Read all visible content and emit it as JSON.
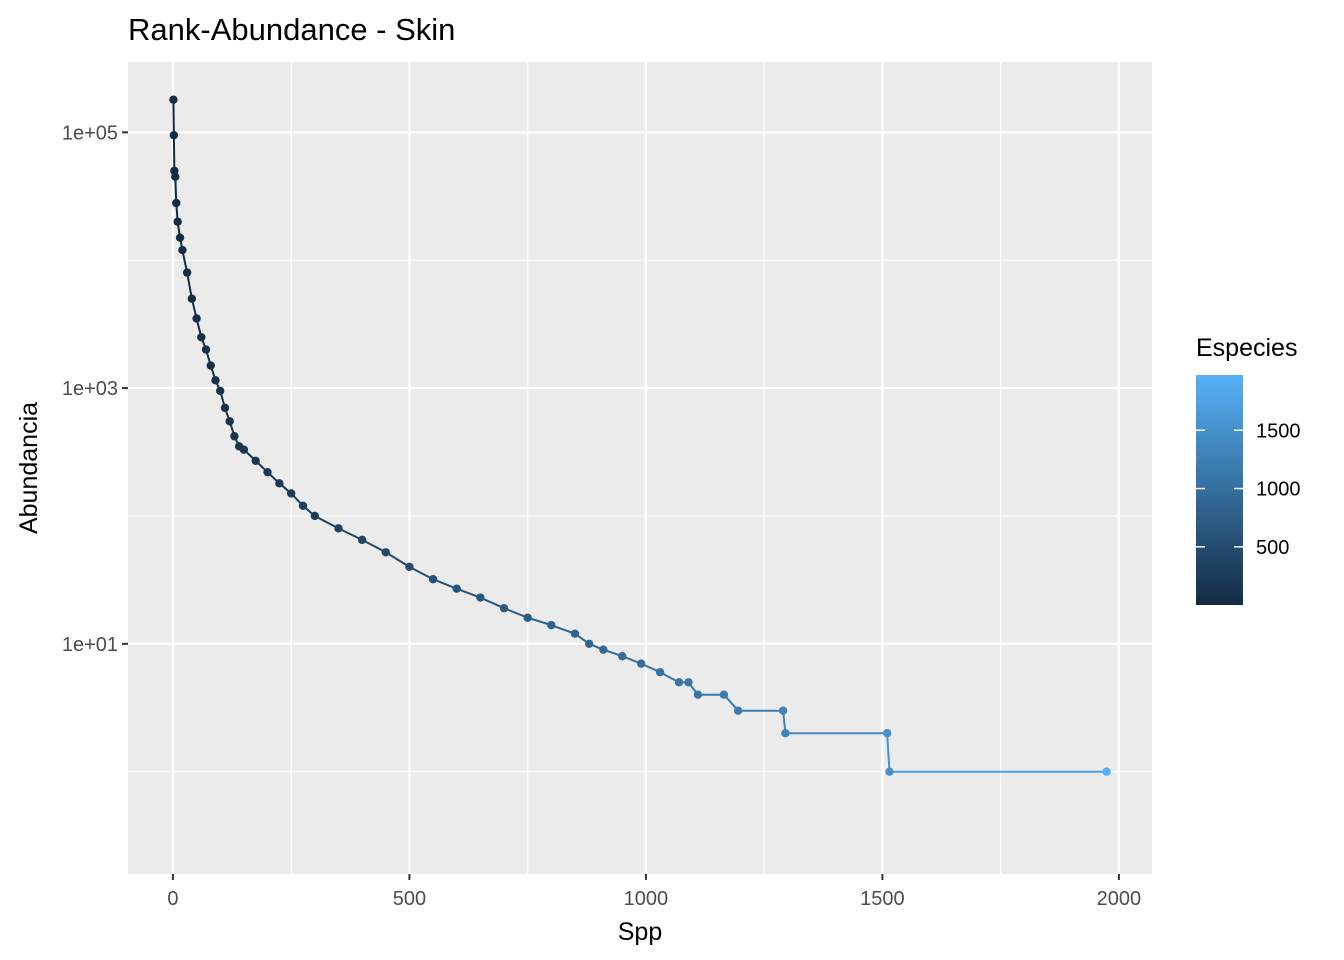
{
  "chart_data": {
    "type": "line",
    "title": "Rank-Abundance - Skin",
    "xlabel": "Spp",
    "ylabel": "Abundancia",
    "x_scale": "linear",
    "y_scale": "log10",
    "xlim": [
      -95,
      2070
    ],
    "ylim_log10": [
      -0.8,
      5.55
    ],
    "x_ticks": [
      0,
      500,
      1000,
      1500,
      2000
    ],
    "x_tick_labels": [
      "0",
      "500",
      "1000",
      "1500",
      "2000"
    ],
    "y_ticks": [
      10,
      1000,
      100000
    ],
    "y_tick_labels": [
      "1e+01",
      "1e+03",
      "1e+05"
    ],
    "grid": true,
    "markers": true,
    "legend": {
      "title": "Especies",
      "position": "right",
      "type": "colorbar",
      "range": [
        1,
        1974
      ],
      "ticks": [
        500,
        1000,
        1500
      ],
      "tick_labels": [
        "500",
        "1000",
        "1500"
      ],
      "low_color": "#132B43",
      "high_color": "#56B1F7"
    },
    "series": [
      {
        "color_by": "Especies",
        "x": [
          1,
          2,
          3,
          5,
          7,
          10,
          15,
          20,
          30,
          40,
          50,
          60,
          70,
          80,
          90,
          100,
          110,
          120,
          130,
          140,
          150,
          175,
          200,
          225,
          250,
          275,
          300,
          350,
          400,
          450,
          500,
          550,
          600,
          650,
          700,
          750,
          800,
          850,
          880,
          910,
          950,
          990,
          1030,
          1070,
          1090,
          1110,
          1165,
          1195,
          1290,
          1295,
          1510,
          1515,
          1974
        ],
        "y": [
          180000,
          95000,
          50000,
          45000,
          28000,
          20000,
          15000,
          12000,
          8000,
          5000,
          3500,
          2500,
          2000,
          1500,
          1150,
          950,
          700,
          550,
          420,
          350,
          330,
          270,
          220,
          180,
          150,
          120,
          100,
          80,
          65,
          52,
          40,
          32,
          27,
          23,
          19,
          16,
          14,
          12,
          10,
          9,
          8,
          7,
          6,
          5,
          5,
          4,
          4,
          3,
          3,
          2,
          2,
          1,
          1
        ]
      }
    ]
  }
}
